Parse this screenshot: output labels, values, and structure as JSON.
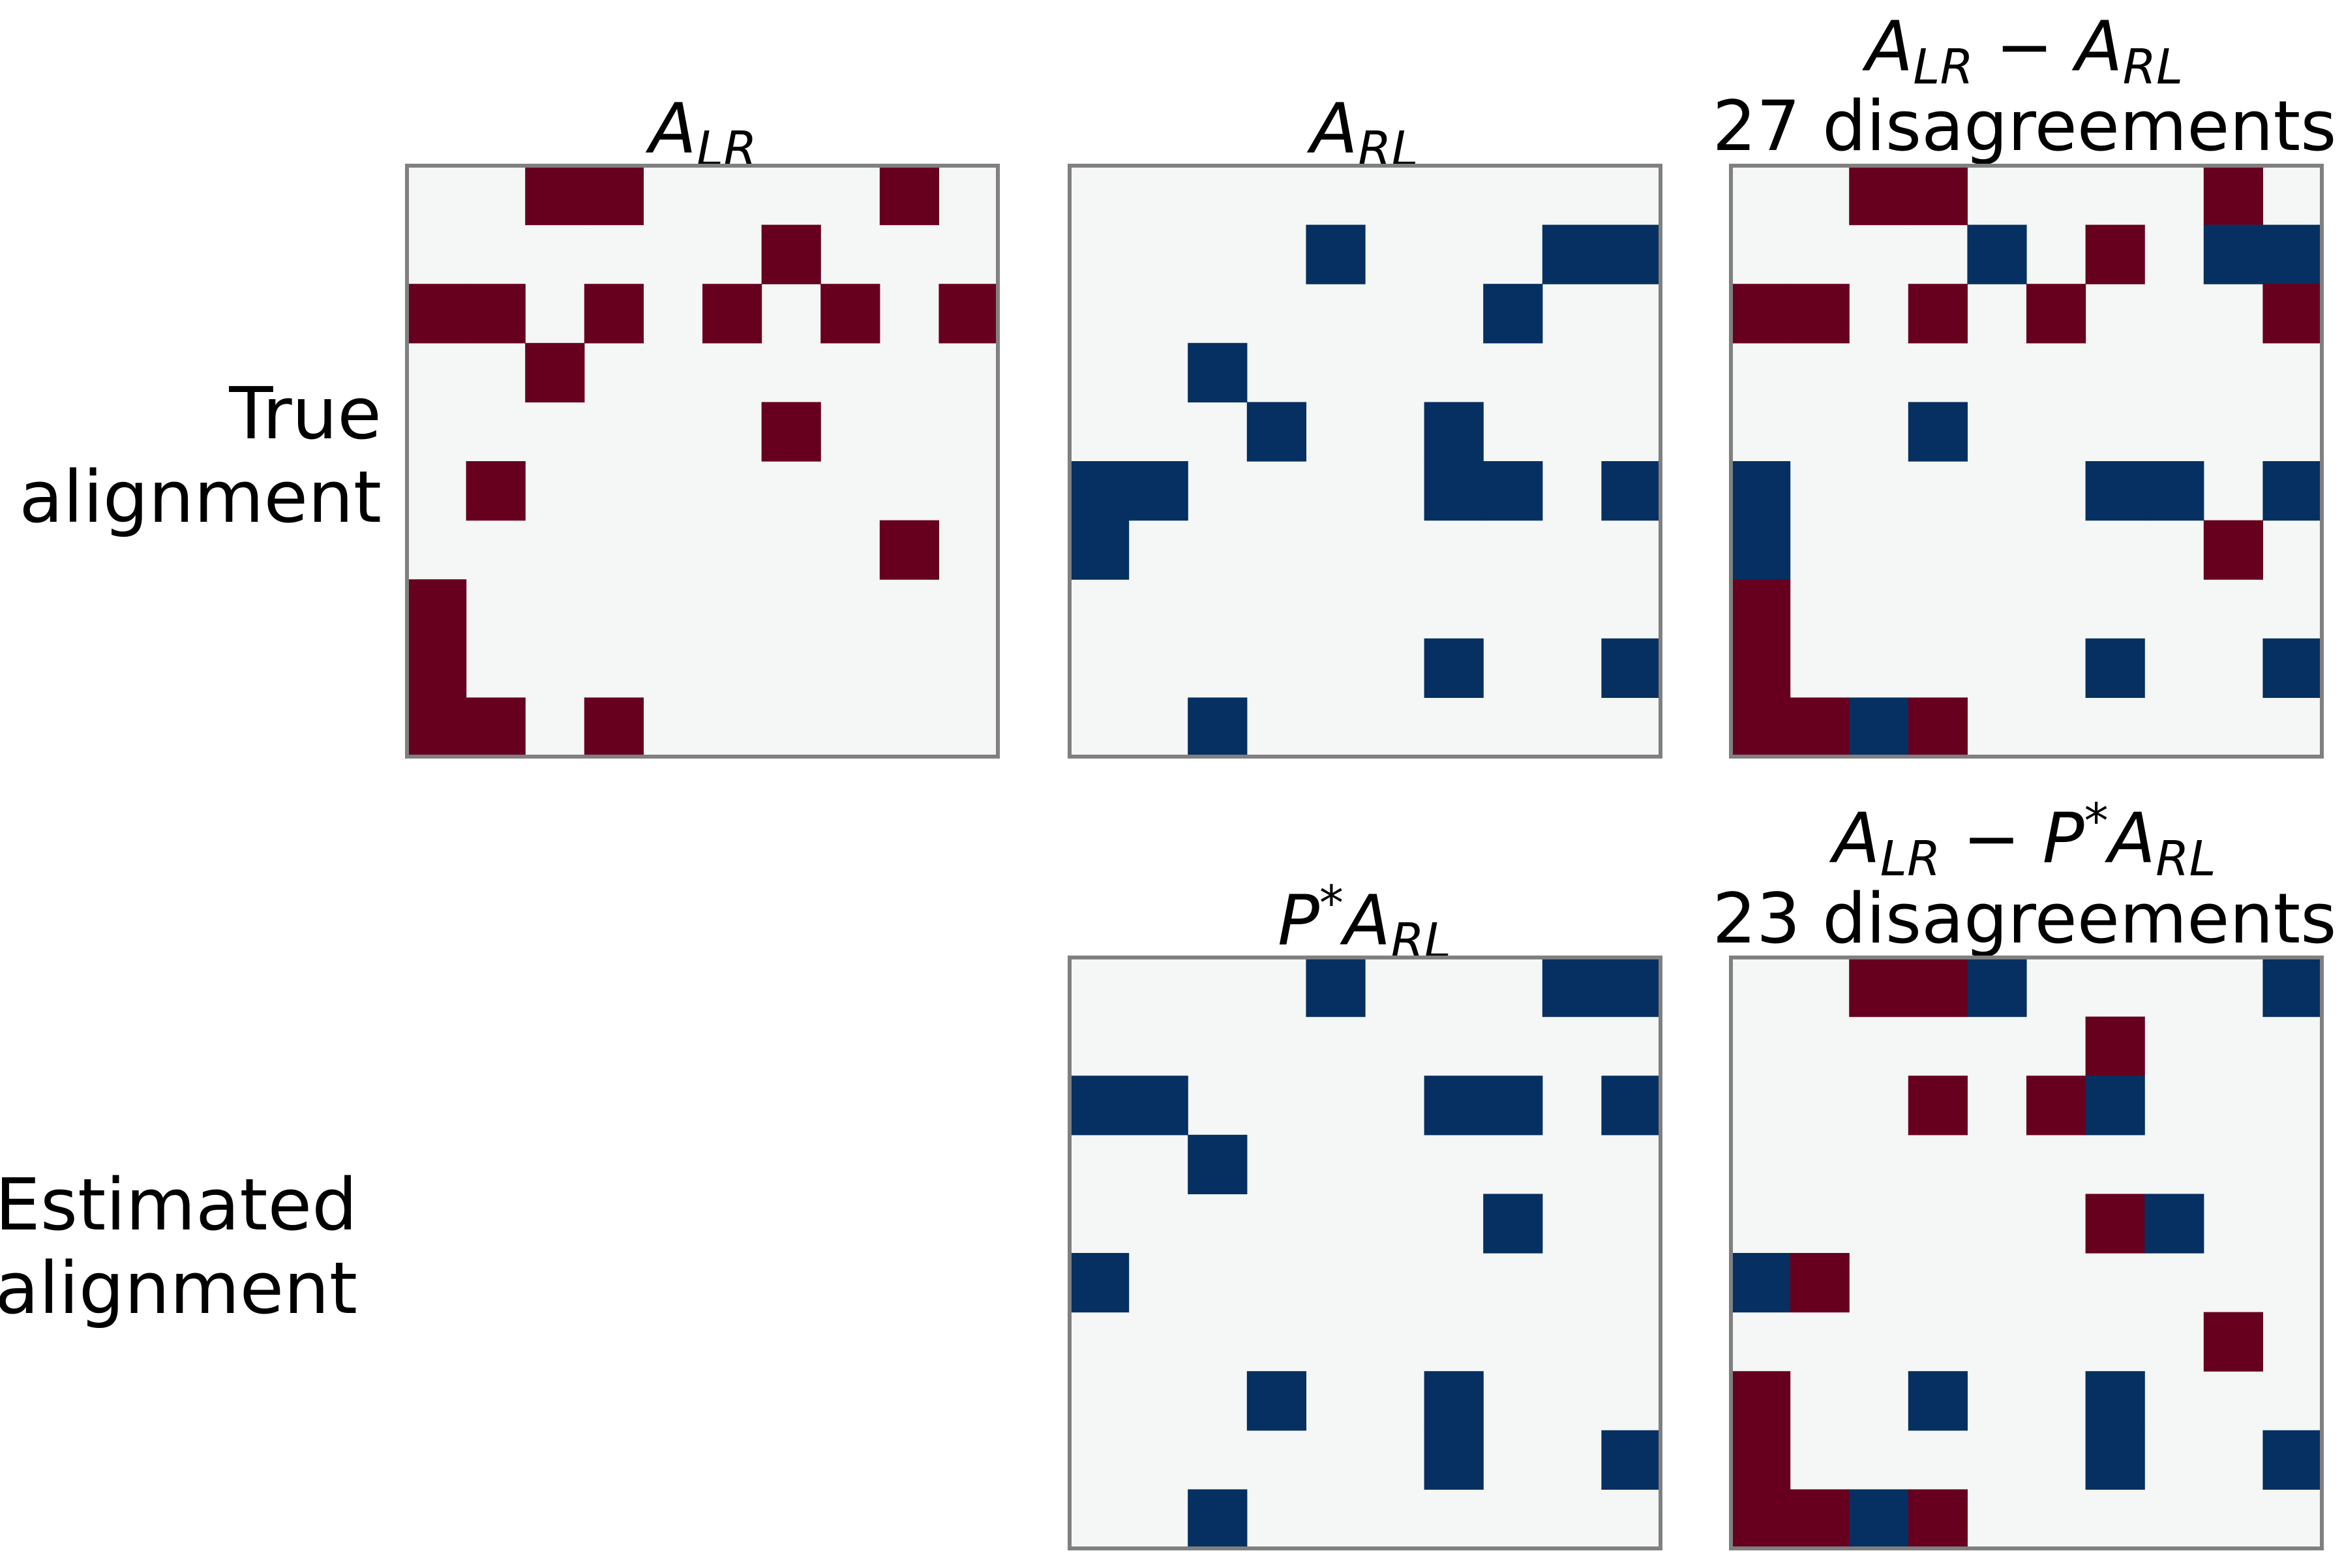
{
  "chart_data": {
    "type": "heatmap",
    "grid": false,
    "value_legend": {
      "1": "dark red",
      "-1": "dark blue",
      "0": "light gray"
    },
    "colors": {
      "positive": "#67001f",
      "negative": "#053061",
      "zero": "#f5f6f6",
      "frame": "#808080"
    },
    "row_labels": [
      {
        "line1": "True",
        "line2": "alignment"
      },
      {
        "line1": "Estimated",
        "line2": "alignment"
      }
    ],
    "panels": [
      {
        "title": {
          "base": "A",
          "sub": "LR"
        },
        "matrix": [
          [
            0,
            0,
            1,
            1,
            0,
            0,
            0,
            0,
            1,
            0
          ],
          [
            0,
            0,
            0,
            0,
            0,
            0,
            1,
            0,
            0,
            0
          ],
          [
            1,
            1,
            0,
            1,
            0,
            1,
            0,
            1,
            0,
            1
          ],
          [
            0,
            0,
            1,
            0,
            0,
            0,
            0,
            0,
            0,
            0
          ],
          [
            0,
            0,
            0,
            0,
            0,
            0,
            1,
            0,
            0,
            0
          ],
          [
            0,
            1,
            0,
            0,
            0,
            0,
            0,
            0,
            0,
            0
          ],
          [
            0,
            0,
            0,
            0,
            0,
            0,
            0,
            0,
            1,
            0
          ],
          [
            1,
            0,
            0,
            0,
            0,
            0,
            0,
            0,
            0,
            0
          ],
          [
            1,
            0,
            0,
            0,
            0,
            0,
            0,
            0,
            0,
            0
          ],
          [
            1,
            1,
            0,
            1,
            0,
            0,
            0,
            0,
            0,
            0
          ]
        ]
      },
      {
        "title": {
          "base": "A",
          "sub": "RL"
        },
        "matrix": [
          [
            0,
            0,
            0,
            0,
            0,
            0,
            0,
            0,
            0,
            0
          ],
          [
            0,
            0,
            0,
            0,
            -1,
            0,
            0,
            0,
            -1,
            -1
          ],
          [
            0,
            0,
            0,
            0,
            0,
            0,
            0,
            -1,
            0,
            0
          ],
          [
            0,
            0,
            -1,
            0,
            0,
            0,
            0,
            0,
            0,
            0
          ],
          [
            0,
            0,
            0,
            -1,
            0,
            0,
            -1,
            0,
            0,
            0
          ],
          [
            -1,
            -1,
            0,
            0,
            0,
            0,
            -1,
            -1,
            0,
            -1
          ],
          [
            -1,
            0,
            0,
            0,
            0,
            0,
            0,
            0,
            0,
            0
          ],
          [
            0,
            0,
            0,
            0,
            0,
            0,
            0,
            0,
            0,
            0
          ],
          [
            0,
            0,
            0,
            0,
            0,
            0,
            -1,
            0,
            0,
            -1
          ],
          [
            0,
            0,
            -1,
            0,
            0,
            0,
            0,
            0,
            0,
            0
          ]
        ]
      },
      {
        "title": {
          "line1": {
            "a": "A",
            "a_sub": "LR",
            "op": " − ",
            "b": "A",
            "b_sub": "RL"
          },
          "line2": "27 disagreements"
        },
        "matrix": [
          [
            0,
            0,
            1,
            1,
            0,
            0,
            0,
            0,
            1,
            0
          ],
          [
            0,
            0,
            0,
            0,
            -1,
            0,
            1,
            0,
            -1,
            -1
          ],
          [
            1,
            1,
            0,
            1,
            0,
            1,
            0,
            0,
            0,
            1
          ],
          [
            0,
            0,
            0,
            0,
            0,
            0,
            0,
            0,
            0,
            0
          ],
          [
            0,
            0,
            0,
            -1,
            0,
            0,
            0,
            0,
            0,
            0
          ],
          [
            -1,
            0,
            0,
            0,
            0,
            0,
            -1,
            -1,
            0,
            -1
          ],
          [
            -1,
            0,
            0,
            0,
            0,
            0,
            0,
            0,
            1,
            0
          ],
          [
            1,
            0,
            0,
            0,
            0,
            0,
            0,
            0,
            0,
            0
          ],
          [
            1,
            0,
            0,
            0,
            0,
            0,
            -1,
            0,
            0,
            -1
          ],
          [
            1,
            1,
            -1,
            1,
            0,
            0,
            0,
            0,
            0,
            0
          ]
        ]
      },
      {
        "title": {
          "base": "P",
          "sup": "*",
          "base2": "A",
          "sub": "RL"
        },
        "matrix": [
          [
            0,
            0,
            0,
            0,
            -1,
            0,
            0,
            0,
            -1,
            -1
          ],
          [
            0,
            0,
            0,
            0,
            0,
            0,
            0,
            0,
            0,
            0
          ],
          [
            -1,
            -1,
            0,
            0,
            0,
            0,
            -1,
            -1,
            0,
            -1
          ],
          [
            0,
            0,
            -1,
            0,
            0,
            0,
            0,
            0,
            0,
            0
          ],
          [
            0,
            0,
            0,
            0,
            0,
            0,
            0,
            -1,
            0,
            0
          ],
          [
            -1,
            0,
            0,
            0,
            0,
            0,
            0,
            0,
            0,
            0
          ],
          [
            0,
            0,
            0,
            0,
            0,
            0,
            0,
            0,
            0,
            0
          ],
          [
            0,
            0,
            0,
            -1,
            0,
            0,
            -1,
            0,
            0,
            0
          ],
          [
            0,
            0,
            0,
            0,
            0,
            0,
            -1,
            0,
            0,
            -1
          ],
          [
            0,
            0,
            -1,
            0,
            0,
            0,
            0,
            0,
            0,
            0
          ]
        ]
      },
      {
        "title": {
          "line1": {
            "a": "A",
            "a_sub": "LR",
            "op": " − ",
            "p": "P",
            "p_sup": "*",
            "b": "A",
            "b_sub": "RL"
          },
          "line2": "23 disagreements"
        },
        "matrix": [
          [
            0,
            0,
            1,
            1,
            -1,
            0,
            0,
            0,
            0,
            -1
          ],
          [
            0,
            0,
            0,
            0,
            0,
            0,
            1,
            0,
            0,
            0
          ],
          [
            0,
            0,
            0,
            1,
            0,
            1,
            -1,
            0,
            0,
            0
          ],
          [
            0,
            0,
            0,
            0,
            0,
            0,
            0,
            0,
            0,
            0
          ],
          [
            0,
            0,
            0,
            0,
            0,
            0,
            1,
            -1,
            0,
            0
          ],
          [
            -1,
            1,
            0,
            0,
            0,
            0,
            0,
            0,
            0,
            0
          ],
          [
            0,
            0,
            0,
            0,
            0,
            0,
            0,
            0,
            1,
            0
          ],
          [
            1,
            0,
            0,
            -1,
            0,
            0,
            -1,
            0,
            0,
            0
          ],
          [
            1,
            0,
            0,
            0,
            0,
            0,
            -1,
            0,
            0,
            -1
          ],
          [
            1,
            1,
            -1,
            1,
            0,
            0,
            0,
            0,
            0,
            0
          ]
        ]
      }
    ]
  }
}
